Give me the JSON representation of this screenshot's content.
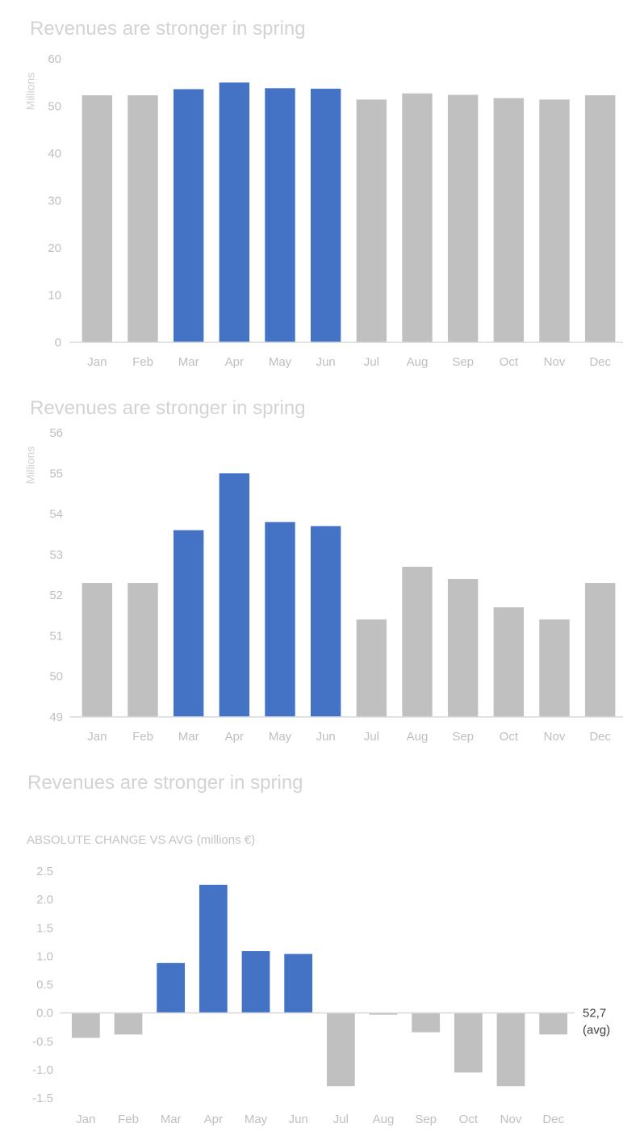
{
  "chart_data": [
    {
      "type": "bar",
      "title": "Revenues are stronger in spring",
      "ylabel": "Millions",
      "categories": [
        "Jan",
        "Feb",
        "Mar",
        "Apr",
        "May",
        "Jun",
        "Jul",
        "Aug",
        "Sep",
        "Oct",
        "Nov",
        "Dec"
      ],
      "values": [
        52.3,
        52.3,
        53.6,
        55.0,
        53.8,
        53.7,
        51.4,
        52.7,
        52.4,
        51.7,
        51.4,
        52.3
      ],
      "highlight": [
        false,
        false,
        true,
        true,
        true,
        true,
        false,
        false,
        false,
        false,
        false,
        false
      ],
      "ylim": [
        0,
        60
      ],
      "yticks": [
        "0",
        "10",
        "20",
        "30",
        "40",
        "50",
        "60"
      ],
      "grid": false,
      "colors": {
        "highlight": "#4472c4",
        "base": "#c0c0c0",
        "axis": "#d9d9d9",
        "tick_text": "#bfbfbf"
      }
    },
    {
      "type": "bar",
      "title": "Revenues are stronger in spring",
      "ylabel": "Millions",
      "categories": [
        "Jan",
        "Feb",
        "Mar",
        "Apr",
        "May",
        "Jun",
        "Jul",
        "Aug",
        "Sep",
        "Oct",
        "Nov",
        "Dec"
      ],
      "values": [
        52.3,
        52.3,
        53.6,
        55.0,
        53.8,
        53.7,
        51.4,
        52.7,
        52.4,
        51.7,
        51.4,
        52.3
      ],
      "highlight": [
        false,
        false,
        true,
        true,
        true,
        true,
        false,
        false,
        false,
        false,
        false,
        false
      ],
      "ylim": [
        49,
        56
      ],
      "yticks": [
        "49",
        "50",
        "51",
        "52",
        "53",
        "54",
        "55",
        "56"
      ],
      "grid": false,
      "colors": {
        "highlight": "#4472c4",
        "base": "#c0c0c0",
        "axis": "#d9d9d9",
        "tick_text": "#bfbfbf"
      }
    },
    {
      "type": "bar",
      "title": "Revenues are stronger in spring",
      "subtitle": "ABSOLUTE CHANGE VS AVG (millions €)",
      "categories": [
        "Jan",
        "Feb",
        "Mar",
        "Apr",
        "May",
        "Jun",
        "Jul",
        "Aug",
        "Sep",
        "Oct",
        "Nov",
        "Dec"
      ],
      "values": [
        -0.44,
        -0.38,
        0.88,
        2.26,
        1.09,
        1.04,
        -1.29,
        -0.03,
        -0.34,
        -1.05,
        -1.29,
        -0.38
      ],
      "highlight": [
        false,
        false,
        true,
        true,
        true,
        true,
        false,
        false,
        false,
        false,
        false,
        false
      ],
      "ylim": [
        -1.5,
        2.5
      ],
      "yticks": [
        "2.5",
        "2.0",
        "1.5",
        "1.0",
        "0.5",
        "0.0",
        "-0.5",
        "-1.0",
        "-1.5"
      ],
      "annotation": {
        "line1": "52,7",
        "line2": "(avg)"
      },
      "grid": false,
      "colors": {
        "highlight": "#4472c4",
        "base": "#c0c0c0",
        "axis": "#d9d9d9",
        "tick_text": "#bfbfbf",
        "annotation": "#404040"
      }
    }
  ]
}
